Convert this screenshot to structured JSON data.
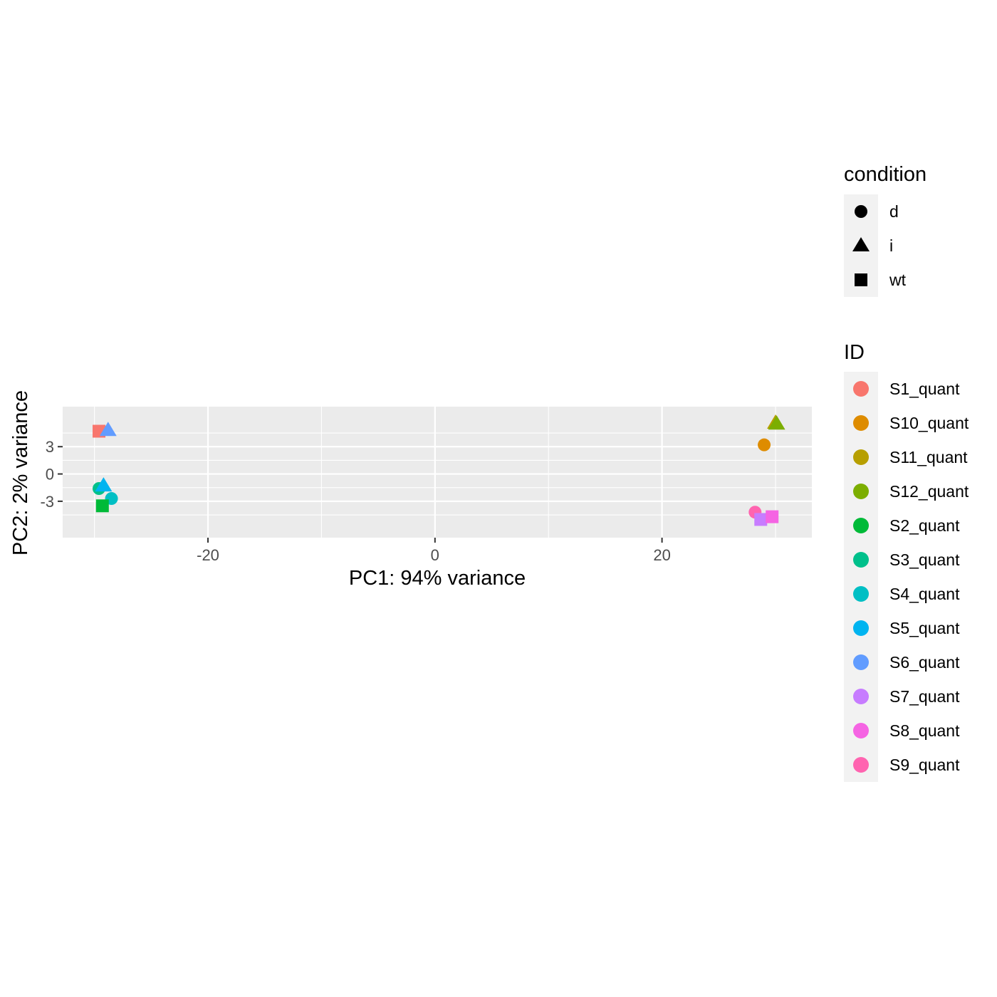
{
  "chart_data": {
    "type": "scatter",
    "title": "",
    "xlabel": "PC1: 94% variance",
    "ylabel": "PC2: 2% variance",
    "xlim": [
      -32.8,
      33.2
    ],
    "ylim": [
      -7.0,
      7.4
    ],
    "x_ticks": [
      -20,
      0,
      20
    ],
    "y_ticks": [
      -3,
      0,
      3
    ],
    "x_tick_labels": [
      "-20",
      "0",
      "20"
    ],
    "y_tick_labels": [
      "-3",
      "0",
      "3"
    ],
    "grid": true,
    "panel_background": "#EBEBEB",
    "legend_placement": "right",
    "legends": {
      "condition": {
        "title": "condition",
        "items": [
          {
            "label": "d",
            "shape": "circle"
          },
          {
            "label": "i",
            "shape": "triangle"
          },
          {
            "label": "wt",
            "shape": "square"
          }
        ]
      },
      "ID": {
        "title": "ID",
        "items": [
          {
            "label": "S1_quant",
            "color": "#F8766D"
          },
          {
            "label": "S10_quant",
            "color": "#DE8C00"
          },
          {
            "label": "S11_quant",
            "color": "#B79F00"
          },
          {
            "label": "S12_quant",
            "color": "#7CAE00"
          },
          {
            "label": "S2_quant",
            "color": "#00BA38"
          },
          {
            "label": "S3_quant",
            "color": "#00C08B"
          },
          {
            "label": "S4_quant",
            "color": "#00BFC4"
          },
          {
            "label": "S5_quant",
            "color": "#00B4F0"
          },
          {
            "label": "S6_quant",
            "color": "#619CFF"
          },
          {
            "label": "S7_quant",
            "color": "#C77CFF"
          },
          {
            "label": "S8_quant",
            "color": "#F564E3"
          },
          {
            "label": "S9_quant",
            "color": "#FF64B0"
          }
        ]
      }
    },
    "points": [
      {
        "id": "S1_quant",
        "condition": "wt",
        "x": -29.6,
        "y": 4.7,
        "color": "#F8766D"
      },
      {
        "id": "S6_quant",
        "condition": "i",
        "x": -28.8,
        "y": 4.8,
        "color": "#619CFF"
      },
      {
        "id": "S3_quant",
        "condition": "d",
        "x": -29.6,
        "y": -1.6,
        "color": "#00C08B"
      },
      {
        "id": "S5_quant",
        "condition": "i",
        "x": -29.2,
        "y": -1.3,
        "color": "#00B4F0"
      },
      {
        "id": "S4_quant",
        "condition": "d",
        "x": -28.5,
        "y": -2.7,
        "color": "#00BFC4"
      },
      {
        "id": "S2_quant",
        "condition": "wt",
        "x": -29.3,
        "y": -3.5,
        "color": "#00BA38"
      },
      {
        "id": "S11_quant",
        "condition": "i",
        "x": 30.0,
        "y": 5.6,
        "color": "#B79F00"
      },
      {
        "id": "S12_quant",
        "condition": "i",
        "x": 30.1,
        "y": 5.5,
        "color": "#7CAE00"
      },
      {
        "id": "S10_quant",
        "condition": "d",
        "x": 29.0,
        "y": 3.2,
        "color": "#DE8C00"
      },
      {
        "id": "S9_quant",
        "condition": "d",
        "x": 28.2,
        "y": -4.2,
        "color": "#FF64B0"
      },
      {
        "id": "S7_quant",
        "condition": "wt",
        "x": 28.7,
        "y": -5.0,
        "color": "#C77CFF"
      },
      {
        "id": "S8_quant",
        "condition": "wt",
        "x": 29.7,
        "y": -4.7,
        "color": "#F564E3"
      }
    ]
  }
}
